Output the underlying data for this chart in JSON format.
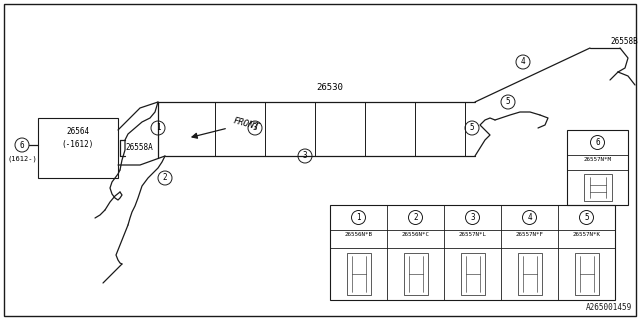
{
  "bg_color": "#ffffff",
  "line_color": "#1a1a1a",
  "part_number_diagram": "A265001459",
  "main_part_label": "26530",
  "front_label": "FRONT",
  "label_26558A": "26558A",
  "label_26558B": "26558B",
  "label_26564": "26564",
  "label_26564b": "(-1612)",
  "label_6_below": "(1612-)",
  "table_parts": [
    {
      "num": "1",
      "code": "26556N*B"
    },
    {
      "num": "2",
      "code": "26556N*C"
    },
    {
      "num": "3",
      "code": "26557N*L"
    },
    {
      "num": "4",
      "code": "26557N*F"
    },
    {
      "num": "5",
      "code": "26557N*K"
    }
  ],
  "table_part6": {
    "num": "6",
    "code": "26557N*M"
  }
}
